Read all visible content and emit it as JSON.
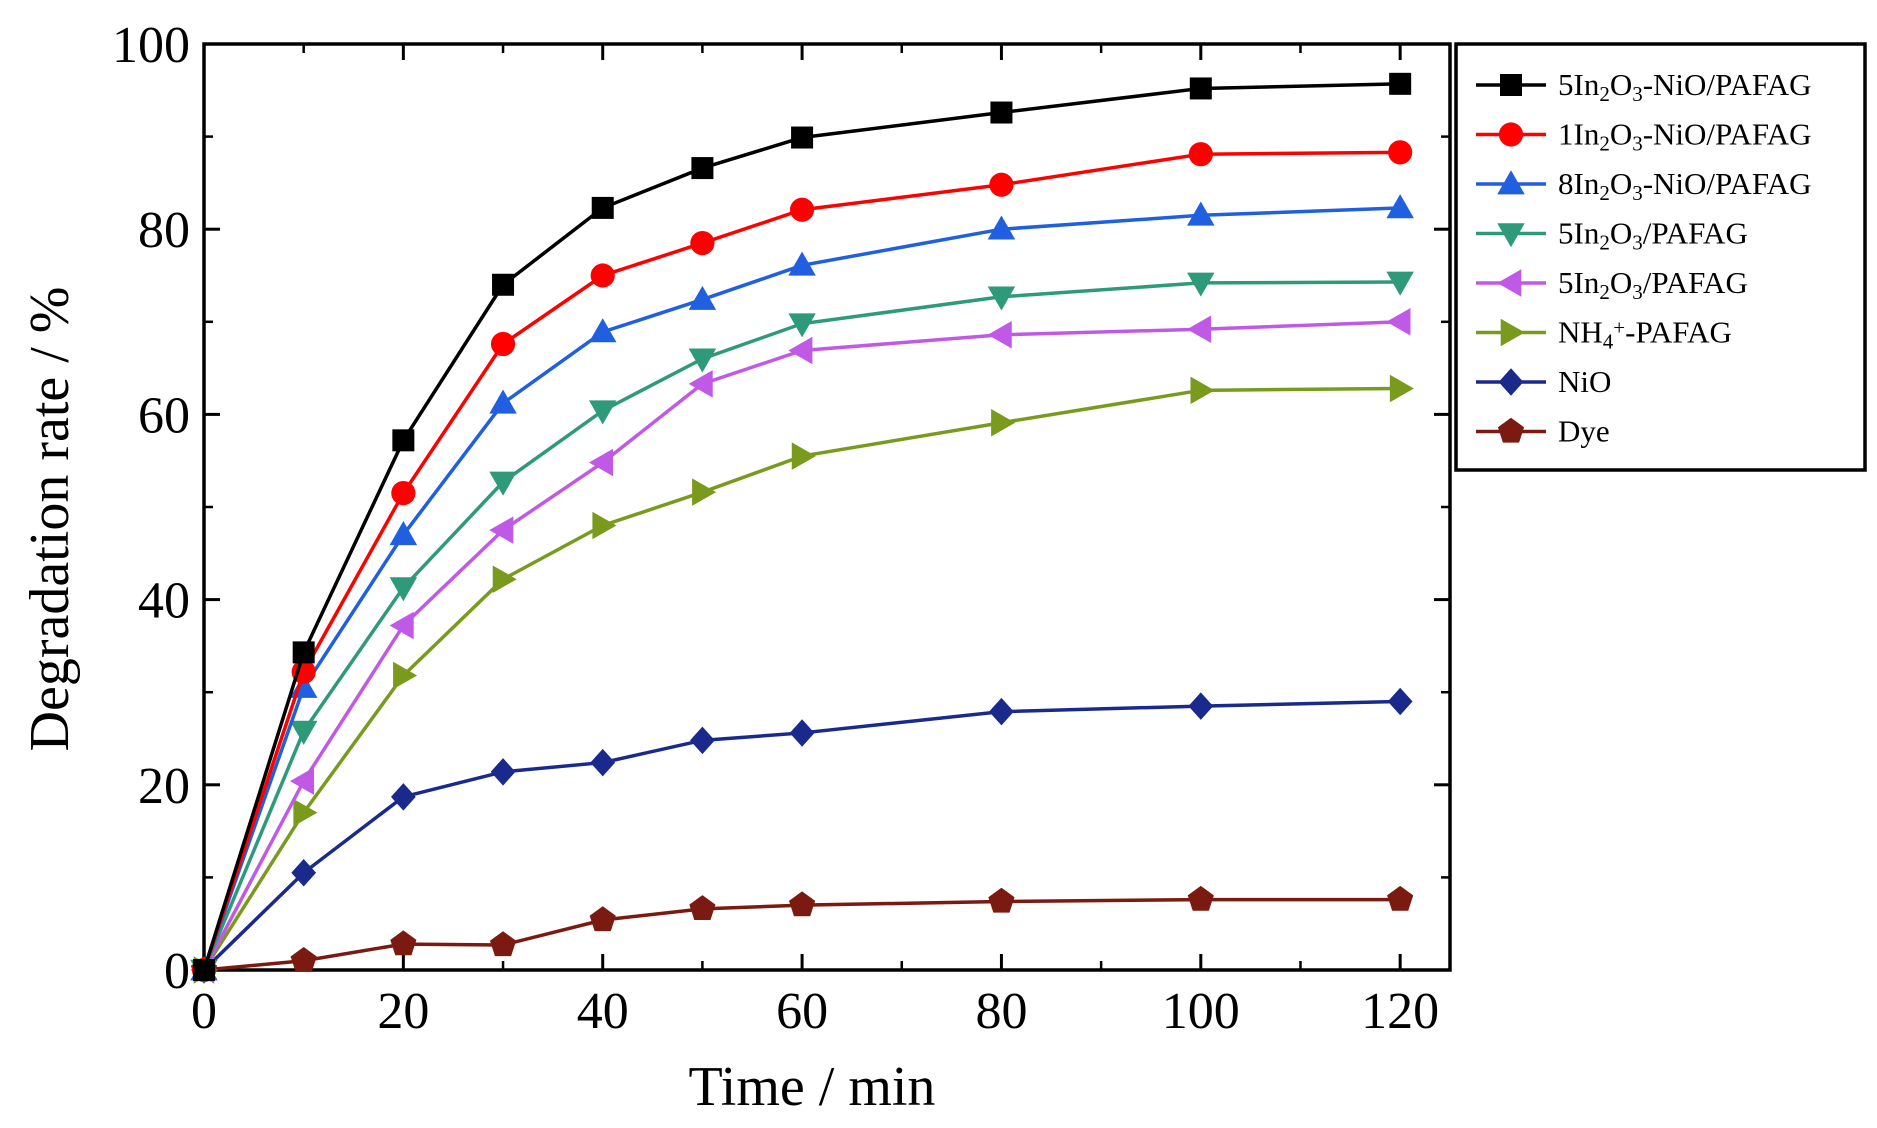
{
  "chart_data": {
    "type": "line",
    "title": "",
    "xlabel": "Time / min",
    "ylabel": "Degradation rate / %",
    "xlim": [
      0,
      125
    ],
    "ylim": [
      0,
      100
    ],
    "x_ticks": [
      0,
      20,
      40,
      60,
      80,
      100,
      120
    ],
    "y_ticks": [
      0,
      20,
      40,
      60,
      80,
      100
    ],
    "x_tick_labels": [
      "0",
      "20",
      "40",
      "60",
      "80",
      "100",
      "120"
    ],
    "y_tick_labels": [
      "0",
      "20",
      "40",
      "60",
      "80",
      "100"
    ],
    "grid": false,
    "legend_position": "right, top",
    "x": [
      0,
      10,
      20,
      30,
      40,
      50,
      60,
      80,
      100,
      120
    ],
    "series": [
      {
        "name": "5In2O3-NiO/PAFAG",
        "label_parts": [
          {
            "t": "5In",
            "sub": false
          },
          {
            "t": "2",
            "sub": true
          },
          {
            "t": "O",
            "sub": false
          },
          {
            "t": "3",
            "sub": true
          },
          {
            "t": "-NiO/PAFAG",
            "sub": false
          }
        ],
        "color": "#000000",
        "marker": "square",
        "values": [
          0,
          34.3,
          57.2,
          74.0,
          82.3,
          86.6,
          89.9,
          92.6,
          95.2,
          95.7
        ]
      },
      {
        "name": "1In2O3-NiO/PAFAG",
        "label_parts": [
          {
            "t": "1In",
            "sub": false
          },
          {
            "t": "2",
            "sub": true
          },
          {
            "t": "O",
            "sub": false
          },
          {
            "t": "3",
            "sub": true
          },
          {
            "t": "-NiO/PAFAG",
            "sub": false
          }
        ],
        "color": "#ff0000",
        "marker": "circle",
        "values": [
          0,
          32.2,
          51.5,
          67.6,
          75.0,
          78.5,
          82.1,
          84.8,
          88.1,
          88.3
        ]
      },
      {
        "name": "8In2O3-NiO/PAFAG",
        "label_parts": [
          {
            "t": "8In",
            "sub": false
          },
          {
            "t": "2",
            "sub": true
          },
          {
            "t": "O",
            "sub": false
          },
          {
            "t": "3",
            "sub": true
          },
          {
            "t": "-NiO/PAFAG",
            "sub": false
          }
        ],
        "color": "#1f5fe0",
        "marker": "triangle-up",
        "values": [
          0,
          30.5,
          47.0,
          61.2,
          68.9,
          72.4,
          76.1,
          80.0,
          81.5,
          82.3
        ]
      },
      {
        "name": "5In2O3/PAFAG",
        "label_parts": [
          {
            "t": "5In",
            "sub": false
          },
          {
            "t": "2",
            "sub": true
          },
          {
            "t": "O",
            "sub": false
          },
          {
            "t": "3",
            "sub": true
          },
          {
            "t": "/PAFAG",
            "sub": false
          }
        ],
        "color": "#2f9a7a",
        "marker": "triangle-down",
        "values": [
          0,
          25.8,
          41.3,
          52.7,
          60.4,
          66.0,
          69.8,
          72.7,
          74.2,
          74.3
        ]
      },
      {
        "name": "5In2O3/PAFAG",
        "label_parts": [
          {
            "t": "5In",
            "sub": false
          },
          {
            "t": "2",
            "sub": true
          },
          {
            "t": "O",
            "sub": false
          },
          {
            "t": "3",
            "sub": true
          },
          {
            "t": "/PAFAG",
            "sub": false
          }
        ],
        "color": "#c05ae6",
        "marker": "triangle-left",
        "values": [
          0,
          20.4,
          37.2,
          47.5,
          54.8,
          63.3,
          66.9,
          68.6,
          69.2,
          70.0
        ]
      },
      {
        "name": "NH4+-PAFAG",
        "label_parts": [
          {
            "t": "NH",
            "sub": false
          },
          {
            "t": "4",
            "sub": true
          },
          {
            "t": "+",
            "sup": true
          },
          {
            "t": "-PAFAG",
            "sub": false
          }
        ],
        "color": "#7a9a1e",
        "marker": "triangle-right",
        "values": [
          0,
          17.0,
          31.8,
          42.2,
          48.0,
          51.6,
          55.5,
          59.1,
          62.6,
          62.8
        ]
      },
      {
        "name": "NiO",
        "label_parts": [
          {
            "t": "NiO",
            "sub": false
          }
        ],
        "color": "#1a2a8c",
        "marker": "diamond",
        "values": [
          0,
          10.5,
          18.7,
          21.4,
          22.4,
          24.8,
          25.6,
          27.9,
          28.5,
          29.0
        ]
      },
      {
        "name": "Dye",
        "label_parts": [
          {
            "t": "Dye",
            "sub": false
          }
        ],
        "color": "#7a1a10",
        "marker": "pentagon",
        "values": [
          0,
          1.0,
          2.8,
          2.7,
          5.4,
          6.6,
          7.0,
          7.4,
          7.6,
          7.6
        ]
      }
    ]
  }
}
